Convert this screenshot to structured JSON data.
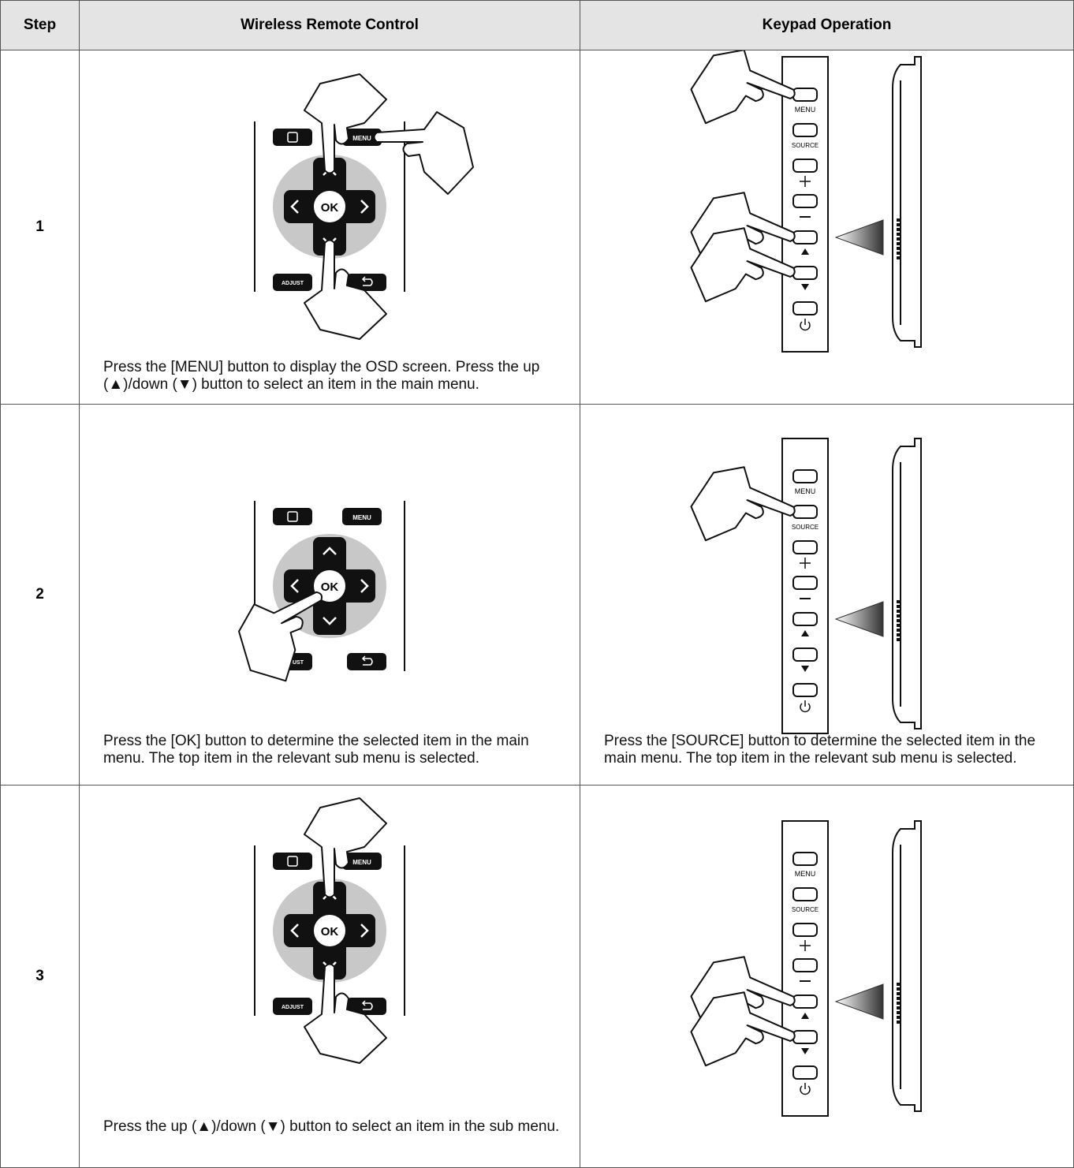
{
  "header": {
    "step": "Step",
    "remote": "Wireless Remote Control",
    "keypad": "Keypad Operation"
  },
  "remote_labels": {
    "menu": "MENU",
    "ok": "OK",
    "adjust": "ADJUST"
  },
  "keypad_labels": {
    "menu": "MENU",
    "source": "SOURCE"
  },
  "rows": [
    {
      "step": "1",
      "remote_text": "Press the [MENU] button to display the OSD screen. Press the up (▲)/down (▼) button to select an item in the main menu."
    },
    {
      "step": "2",
      "remote_text": "Press the [OK] button to determine the selected item in the main menu. The top item in the relevant sub menu is selected.",
      "keypad_text": "Press the [SOURCE] button to determine the selected item in the main menu. The top item in the relevant sub menu is selected."
    },
    {
      "step": "3",
      "remote_text": "Press the up (▲)/down (▼) button to select an item in the sub menu."
    }
  ]
}
